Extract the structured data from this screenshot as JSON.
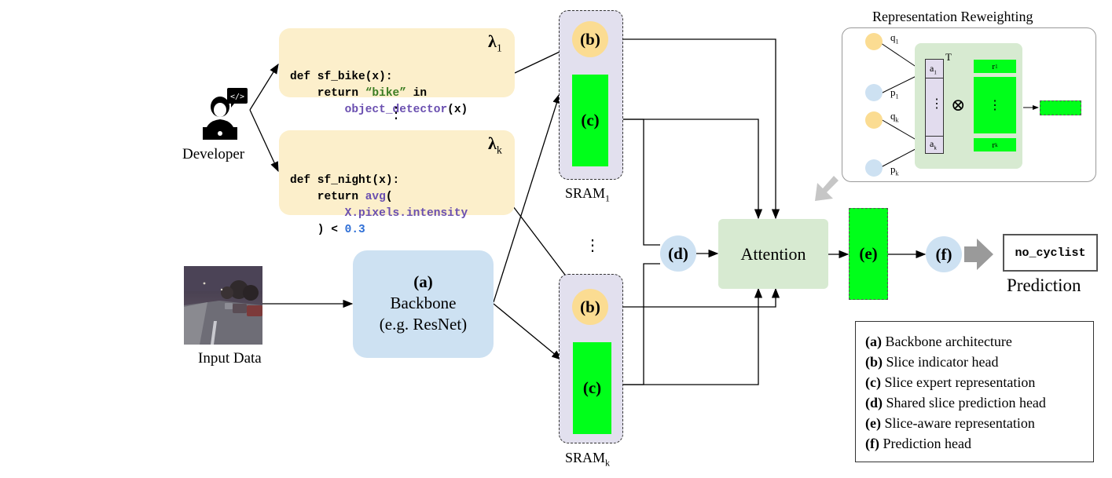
{
  "developer": {
    "label": "Developer"
  },
  "slicing_functions": [
    {
      "lines": [
        [
          {
            "t": "def sf_bike(x):",
            "c": ""
          }
        ],
        [
          {
            "t": "    return ",
            "c": ""
          },
          {
            "t": "“bike”",
            "c": "str"
          },
          {
            "t": " in",
            "c": ""
          }
        ],
        [
          {
            "t": "        ",
            "c": ""
          },
          {
            "t": "object_detector",
            "c": "fn"
          },
          {
            "t": "(x)",
            "c": ""
          }
        ]
      ],
      "lambda": "λ",
      "lambda_sub": "1"
    },
    {
      "lines": [
        [
          {
            "t": "def sf_night(x):",
            "c": ""
          }
        ],
        [
          {
            "t": "    return ",
            "c": ""
          },
          {
            "t": "avg",
            "c": "fn"
          },
          {
            "t": "(",
            "c": ""
          }
        ],
        [
          {
            "t": "        ",
            "c": ""
          },
          {
            "t": "X.pixels.intensity",
            "c": "fn"
          }
        ],
        [
          {
            "t": "    ) < ",
            "c": ""
          },
          {
            "t": "0.3",
            "c": "num"
          }
        ]
      ],
      "lambda": "λ",
      "lambda_sub": "k"
    }
  ],
  "ellipsis": "⋮",
  "input_data": {
    "label": "Input Data"
  },
  "backbone": {
    "tag": "(a)",
    "line1": "Backbone",
    "line2": "(e.g. ResNet)"
  },
  "sram_top": {
    "head_b": "(b)",
    "head_c": "(c)",
    "label": "SRAM",
    "label_sub": "1"
  },
  "sram_bottom": {
    "head_b": "(b)",
    "head_c": "(c)",
    "label": "SRAM",
    "label_sub": "k"
  },
  "head_d": "(d)",
  "attention": "Attention",
  "head_e": "(e)",
  "head_f": "(f)",
  "prediction": {
    "value": "no_cyclist",
    "label": "Prediction"
  },
  "reweighting": {
    "title": "Representation Reweighting",
    "q1": "q",
    "q1_sub": "1",
    "p1": "p",
    "p1_sub": "1",
    "qk": "q",
    "qk_sub": "k",
    "pk": "p",
    "pk_sub": "k",
    "a1": "a",
    "a1_sub": "1",
    "ak": "a",
    "ak_sub": "k",
    "r1": "r",
    "r1_sub": "1",
    "rk": "r",
    "rk_sub": "k",
    "transpose": "T",
    "vdots": "⋮",
    "otimes": "⊗"
  },
  "legend": [
    {
      "key": "(a)",
      "text": " Backbone architecture"
    },
    {
      "key": "(b)",
      "text": " Slice indicator head"
    },
    {
      "key": "(c)",
      "text": " Slice expert representation"
    },
    {
      "key": "(d)",
      "text": " Shared slice prediction head"
    },
    {
      "key": "(e)",
      "text": " Slice-aware representation"
    },
    {
      "key": "(f)",
      "text": " Prediction head"
    }
  ],
  "colors": {
    "green": "#00ff1a",
    "code_bg": "#fcefcb",
    "sram_bg": "#e2e0ee",
    "attention_bg": "#d7ead1",
    "backbone_bg": "#cde1f2"
  }
}
